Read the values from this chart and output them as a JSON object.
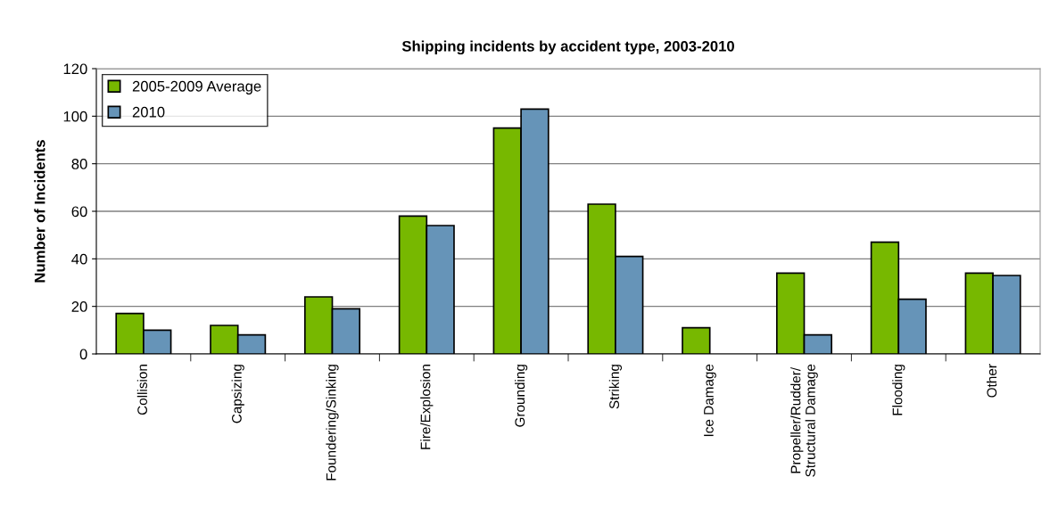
{
  "chart_data": {
    "type": "bar",
    "title": "Shipping incidents by accident type, 2003-2010",
    "ylabel": "Number of Incidents",
    "categories": [
      "Collision",
      "Capsizing",
      "Foundering/Sinking",
      "Fire/Explosion",
      "Grounding",
      "Striking",
      "Ice Damage",
      "Propeller/Rudder/\nStructural Damage",
      "Flooding",
      "Other"
    ],
    "series": [
      {
        "name": "2005-2009 Average",
        "color": "#77b800",
        "values": [
          17,
          12,
          24,
          58,
          95,
          63,
          11,
          34,
          47,
          34
        ]
      },
      {
        "name": "2010",
        "color": "#6694b8",
        "values": [
          10,
          8,
          19,
          54,
          103,
          41,
          0,
          8,
          23,
          33
        ]
      }
    ],
    "ylim": [
      0,
      120
    ],
    "yticks": [
      0,
      20,
      40,
      60,
      80,
      100,
      120
    ],
    "grid": "y",
    "legend": "top left"
  }
}
